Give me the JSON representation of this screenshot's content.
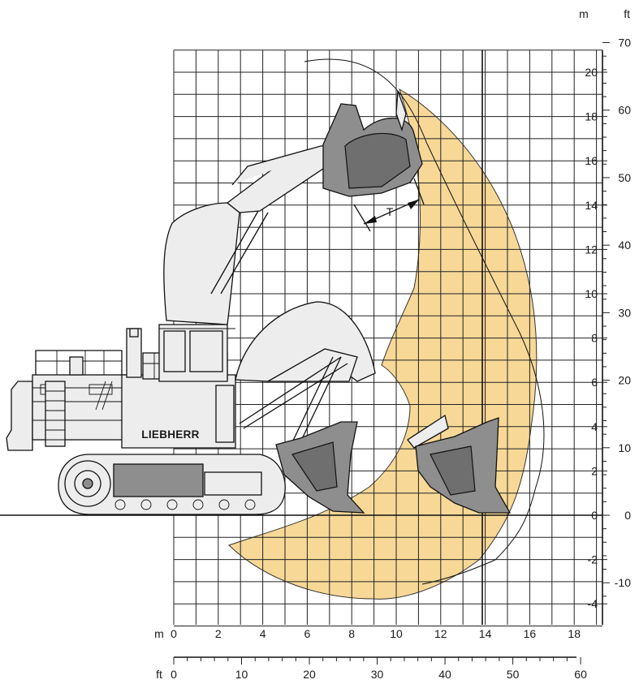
{
  "diagram": {
    "brand_label": "LIEBHERR",
    "dimension_label": "T",
    "units": {
      "metric": "m",
      "imperial": "ft"
    },
    "axes": {
      "x_m_ticks": [
        "0",
        "2",
        "4",
        "6",
        "8",
        "10",
        "12",
        "14",
        "16",
        "18"
      ],
      "x_ft_ticks": [
        "0",
        "10",
        "20",
        "30",
        "40",
        "50",
        "60"
      ],
      "y_m_ticks": [
        "20",
        "18",
        "16",
        "14",
        "12",
        "10",
        "8",
        "6",
        "4",
        "2",
        "0",
        "-2",
        "-4"
      ],
      "y_ft_ticks": [
        "70",
        "60",
        "50",
        "40",
        "30",
        "20",
        "10",
        "0",
        "-10"
      ]
    },
    "colors": {
      "reach_area": "#f7d896",
      "grid": "#222222",
      "machine_body": "#ededed",
      "bucket": "#8e8e8e"
    }
  }
}
